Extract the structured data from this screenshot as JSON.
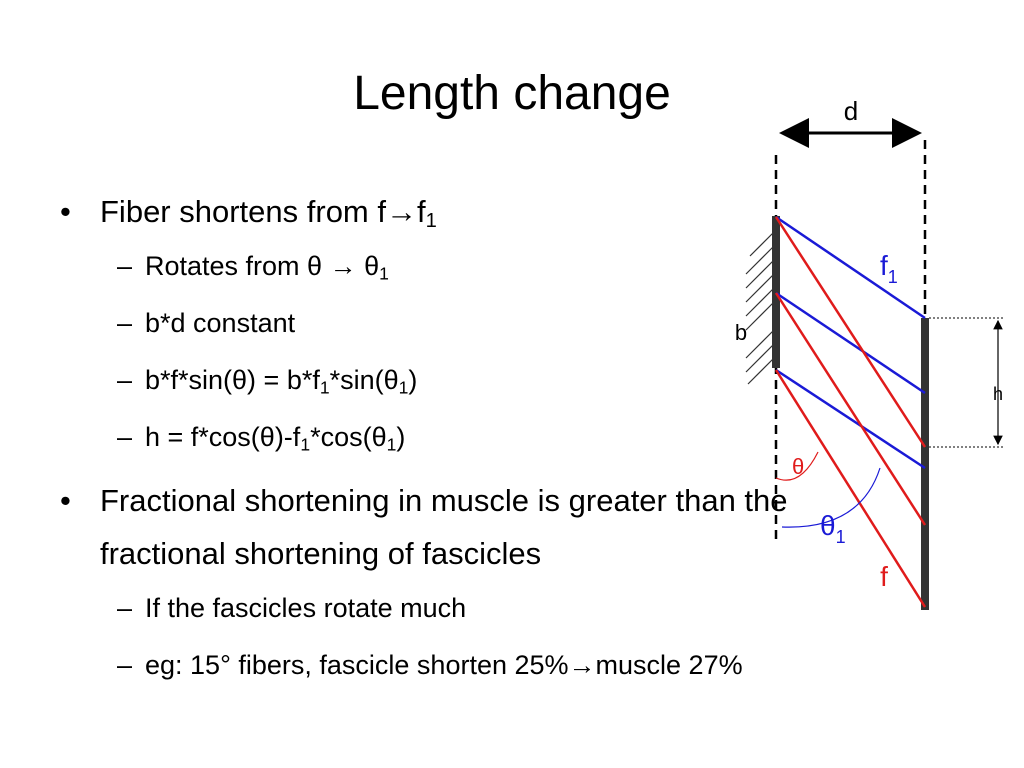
{
  "header": {
    "title": "Length change"
  },
  "bullets": [
    {
      "runs": [
        "Fiber shortens from f→f",
        {
          "sub": "1"
        }
      ],
      "subitems": [
        {
          "runs": [
            "Rotates from θ → θ",
            {
              "sub": "1"
            }
          ]
        },
        {
          "runs": [
            "b*d constant"
          ]
        },
        {
          "runs": [
            "b*f*sin(θ) = b*f",
            {
              "sub": "1"
            },
            "*sin(θ",
            {
              "sub": "1"
            },
            ")"
          ]
        },
        {
          "runs": [
            "h = f*cos(θ)-f",
            {
              "sub": "1"
            },
            "*cos(θ",
            {
              "sub": "1"
            },
            ")"
          ]
        }
      ]
    },
    {
      "runs": [
        "Fractional shortening in muscle is greater than the fractional shortening of fascicles"
      ],
      "subitems": [
        {
          "runs": [
            "If the fascicles rotate much"
          ]
        },
        {
          "runs": [
            "eg: 15° fibers, fascicle shorten 25%→muscle 27%"
          ]
        }
      ]
    }
  ],
  "diagram": {
    "d": "d",
    "b": "b",
    "h": "h",
    "f": "f",
    "f1": {
      "base": "f",
      "sub": "1"
    },
    "theta": "θ",
    "theta1": {
      "base": "θ",
      "sub": "1"
    }
  }
}
